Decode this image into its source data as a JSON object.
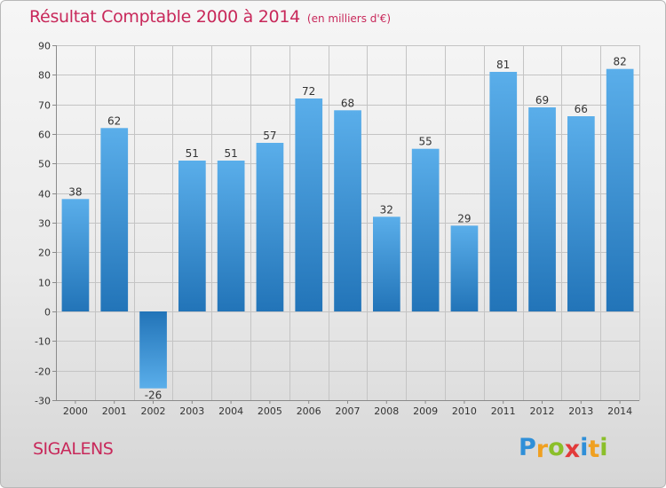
{
  "title": "Résultat Comptable 2000 à 2014",
  "subtitle": "(en milliers d'€)",
  "commune": "SIGALENS",
  "logo": {
    "text": "Proxiti",
    "letters": [
      {
        "ch": "P",
        "color": "#2f8fd8"
      },
      {
        "ch": "r",
        "color": "#f0a020"
      },
      {
        "ch": "o",
        "color": "#8bbf2a"
      },
      {
        "ch": "x",
        "color": "#e23a3a"
      },
      {
        "ch": "i",
        "color": "#2f8fd8"
      },
      {
        "ch": "t",
        "color": "#f0a020"
      },
      {
        "ch": "i",
        "color": "#8bbf2a"
      }
    ]
  },
  "colors": {
    "title": "#c8285a",
    "bar_light": "#5aaeea",
    "bar_dark": "#2274b8",
    "grid": "#c4c4c4",
    "axis": "#8a8a8a",
    "text": "#333333"
  },
  "chart_data": {
    "type": "bar",
    "categories": [
      "2000",
      "2001",
      "2002",
      "2003",
      "2004",
      "2005",
      "2006",
      "2007",
      "2008",
      "2009",
      "2010",
      "2011",
      "2012",
      "2013",
      "2014"
    ],
    "values": [
      38,
      62,
      -26,
      51,
      51,
      57,
      72,
      68,
      32,
      55,
      29,
      81,
      69,
      66,
      82
    ],
    "labels": [
      "38",
      "62",
      "-26",
      "51",
      "51",
      "57",
      "72",
      "68",
      "32",
      "55",
      "29",
      "81",
      "69",
      "66",
      "82"
    ],
    "ylim": [
      -30,
      90
    ],
    "yticks": [
      -30,
      -20,
      -10,
      0,
      10,
      20,
      30,
      40,
      50,
      60,
      70,
      80,
      90
    ],
    "ytick_labels": [
      "-30",
      "-20",
      "-10",
      "0",
      "10",
      "20",
      "30",
      "40",
      "50",
      "60",
      "70",
      "80",
      "90"
    ],
    "grid": true
  }
}
